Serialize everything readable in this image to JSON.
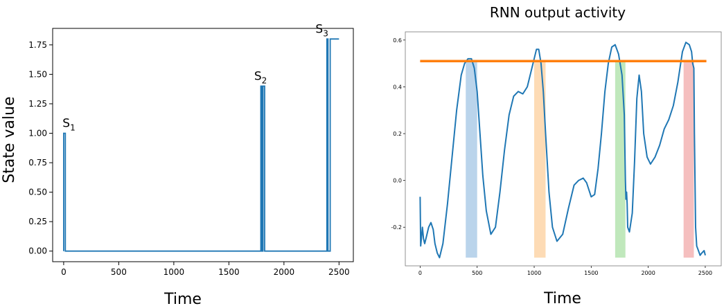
{
  "chart_data": [
    {
      "type": "line",
      "title": "",
      "xlabel": "Time",
      "ylabel": "State value",
      "xlim": [
        -100,
        2630
      ],
      "ylim": [
        -0.09,
        1.89
      ],
      "xticks": [
        0,
        500,
        1000,
        1500,
        2000,
        2500
      ],
      "yticks": [
        "0.00",
        "0.25",
        "0.50",
        "0.75",
        "1.00",
        "1.25",
        "1.50",
        "1.75"
      ],
      "color": "#1f77b4",
      "grid": false,
      "annotations": [
        {
          "base": "S",
          "sub": "1",
          "x": 10,
          "y": 1.0
        },
        {
          "base": "S",
          "sub": "2",
          "x": 1800,
          "y": 1.4
        },
        {
          "base": "S",
          "sub": "3",
          "x": 2420,
          "y": 1.8
        }
      ],
      "series": [
        {
          "x": [
            0,
            0,
            15,
            15,
            1790,
            1790,
            1800,
            1800,
            1810,
            1810,
            1825,
            1825,
            2390,
            2390,
            2400,
            2400,
            2420,
            2420,
            2500
          ],
          "y": [
            0,
            1.0,
            1.0,
            0,
            0,
            1.4,
            1.4,
            0,
            0,
            1.4,
            1.4,
            0,
            0,
            1.8,
            1.8,
            0,
            0,
            1.8,
            1.8
          ]
        }
      ]
    },
    {
      "type": "line",
      "title": "RNN output activity",
      "xlabel": "Time",
      "ylabel": "",
      "xlim": [
        -130,
        2640
      ],
      "ylim": [
        -0.365,
        0.635
      ],
      "xticks": [
        "0",
        "500",
        "1000",
        "1500",
        "2000",
        "2500"
      ],
      "yticks": [
        "-0.2",
        "0.0",
        "0.2",
        "0.4",
        "0.6"
      ],
      "grid": false,
      "threshold": {
        "y": 0.51,
        "color": "#ff7f0e"
      },
      "shaded_regions": [
        {
          "x0": 400,
          "x1": 500,
          "color": "#aecde8"
        },
        {
          "x0": 1000,
          "x1": 1100,
          "color": "#fdd5a8"
        },
        {
          "x0": 1710,
          "x1": 1800,
          "color": "#b5e4b0"
        },
        {
          "x0": 2310,
          "x1": 2400,
          "color": "#f3b4b4"
        }
      ],
      "series": [
        {
          "color": "#1f77b4",
          "x": [
            0,
            5,
            20,
            30,
            40,
            55,
            75,
            95,
            115,
            130,
            150,
            170,
            200,
            240,
            280,
            320,
            360,
            390,
            420,
            450,
            475,
            500,
            525,
            550,
            580,
            620,
            660,
            700,
            740,
            780,
            820,
            860,
            900,
            940,
            980,
            1020,
            1040,
            1060,
            1080,
            1100,
            1130,
            1160,
            1200,
            1250,
            1300,
            1350,
            1390,
            1430,
            1460,
            1500,
            1530,
            1560,
            1590,
            1620,
            1650,
            1680,
            1710,
            1740,
            1770,
            1790,
            1800,
            1805,
            1810,
            1815,
            1820,
            1835,
            1860,
            1880,
            1900,
            1920,
            1940,
            1960,
            1990,
            2020,
            2060,
            2100,
            2140,
            2180,
            2220,
            2260,
            2300,
            2330,
            2360,
            2380,
            2390,
            2400,
            2405,
            2415,
            2425,
            2440,
            2455,
            2470,
            2490,
            2500
          ],
          "y": [
            -0.07,
            -0.28,
            -0.2,
            -0.25,
            -0.27,
            -0.24,
            -0.2,
            -0.18,
            -0.21,
            -0.27,
            -0.31,
            -0.33,
            -0.27,
            -0.1,
            0.1,
            0.3,
            0.45,
            0.5,
            0.52,
            0.52,
            0.48,
            0.38,
            0.2,
            0.02,
            -0.13,
            -0.23,
            -0.2,
            -0.05,
            0.13,
            0.28,
            0.36,
            0.38,
            0.37,
            0.4,
            0.48,
            0.56,
            0.56,
            0.5,
            0.38,
            0.2,
            -0.05,
            -0.2,
            -0.26,
            -0.23,
            -0.12,
            -0.02,
            0.0,
            0.01,
            -0.01,
            -0.07,
            -0.06,
            0.05,
            0.2,
            0.38,
            0.5,
            0.57,
            0.58,
            0.54,
            0.45,
            0.28,
            0.0,
            -0.08,
            -0.05,
            -0.1,
            -0.2,
            -0.22,
            -0.14,
            0.08,
            0.35,
            0.45,
            0.38,
            0.2,
            0.1,
            0.07,
            0.1,
            0.15,
            0.22,
            0.26,
            0.32,
            0.42,
            0.55,
            0.59,
            0.58,
            0.55,
            0.5,
            0.48,
            0.2,
            -0.2,
            -0.28,
            -0.3,
            -0.32,
            -0.31,
            -0.3,
            -0.32
          ]
        }
      ]
    }
  ]
}
